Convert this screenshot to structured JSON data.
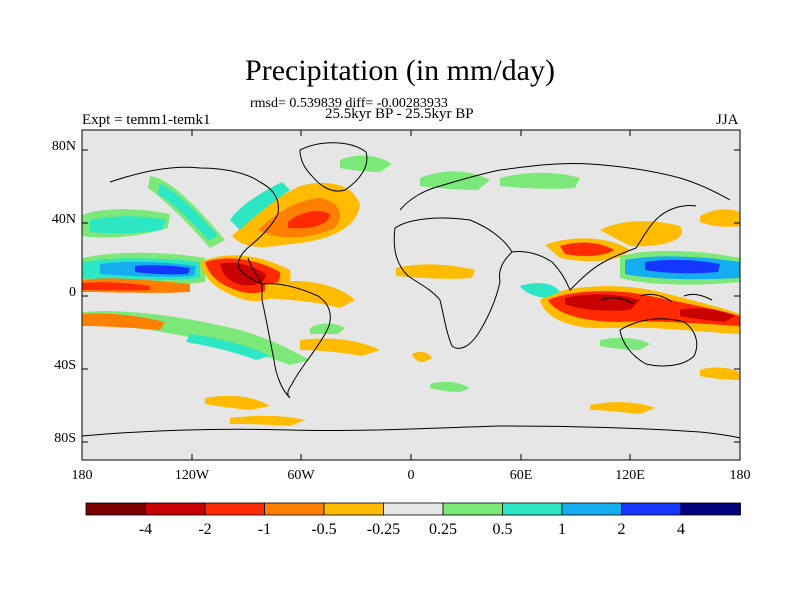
{
  "title": "Precipitation (in mm/day)",
  "stats": "rmsd= 0.539839 diff= -0.00283933",
  "period": "25.5kyr BP - 25.5kyr BP",
  "expt": "Expt = temm1-temk1",
  "season": "JJA",
  "lat_ticks": [
    "80N",
    "40N",
    "0",
    "40S",
    "80S"
  ],
  "lon_ticks": [
    "180",
    "120W",
    "60W",
    "0",
    "60E",
    "120E",
    "180"
  ],
  "colorbar": {
    "labels": [
      "-4",
      "-2",
      "-1",
      "-0.5",
      "-0.25",
      "0.25",
      "0.5",
      "1",
      "2",
      "4"
    ],
    "colors": [
      "#7b0000",
      "#c80000",
      "#ff2a00",
      "#ff7f00",
      "#ffbb00",
      "#e6e6e6",
      "#7de87a",
      "#2de6c4",
      "#14aef0",
      "#1437ff",
      "#00007f"
    ]
  }
}
